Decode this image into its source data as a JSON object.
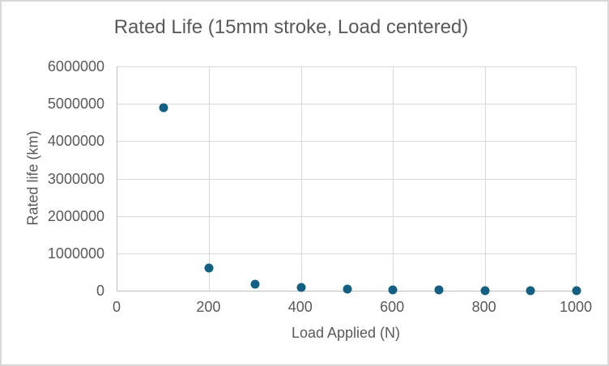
{
  "chart_data": {
    "type": "scatter",
    "title": "Rated Life (15mm stroke, Load centered)",
    "xlabel": "Load Applied (N)",
    "ylabel": "Rated life (km)",
    "x": [
      100,
      200,
      300,
      400,
      500,
      600,
      700,
      800,
      900,
      1000
    ],
    "y": [
      4900000,
      610000,
      180000,
      77000,
      39000,
      23000,
      14000,
      9600,
      6700,
      4900
    ],
    "xlim": [
      0,
      1000
    ],
    "ylim": [
      0,
      6000000
    ],
    "x_ticks": [
      0,
      200,
      400,
      600,
      800,
      1000
    ],
    "y_ticks": [
      0,
      1000000,
      2000000,
      3000000,
      4000000,
      5000000,
      6000000
    ],
    "grid": true,
    "legend": false,
    "marker_color": "#156082",
    "text_color": "#595959",
    "gridline_color": "#d9d9d9",
    "axis_color": "#bfbfbf",
    "background_color": "#ffffff",
    "border_color": "#d9d9d9"
  }
}
